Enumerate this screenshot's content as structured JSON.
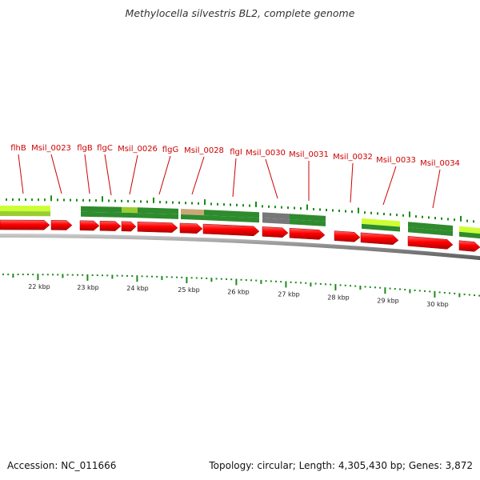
{
  "title": "Methylocella silvestris BL2, complete genome",
  "footer": {
    "accession": "Accession: NC_011666",
    "summary": "Topology: circular; Length: 4,305,430 bp; Genes: 3,872"
  },
  "colors": {
    "label_red": "#cc0000",
    "cds_red": "#ff0000",
    "dark_green": "#2e8b2e",
    "light_green": "#9acd32",
    "lime": "#ccff33",
    "tan": "#c8a878",
    "gray": "#777777",
    "tick_green": "#1a8c1a"
  },
  "gene_labels": [
    "flhB",
    "Msil_0023",
    "flgB",
    "flgC",
    "Msil_0026",
    "flgG",
    "Msil_0028",
    "flgI",
    "Msil_0030",
    "Msil_0031",
    "Msil_0032",
    "Msil_0033",
    "Msil_0034"
  ],
  "kbp_ticks": [
    "22 kbp",
    "23 kbp",
    "24 kbp",
    "25 kbp",
    "26 kbp",
    "27 kbp",
    "28 kbp",
    "29 kbp",
    "30 kbp"
  ]
}
